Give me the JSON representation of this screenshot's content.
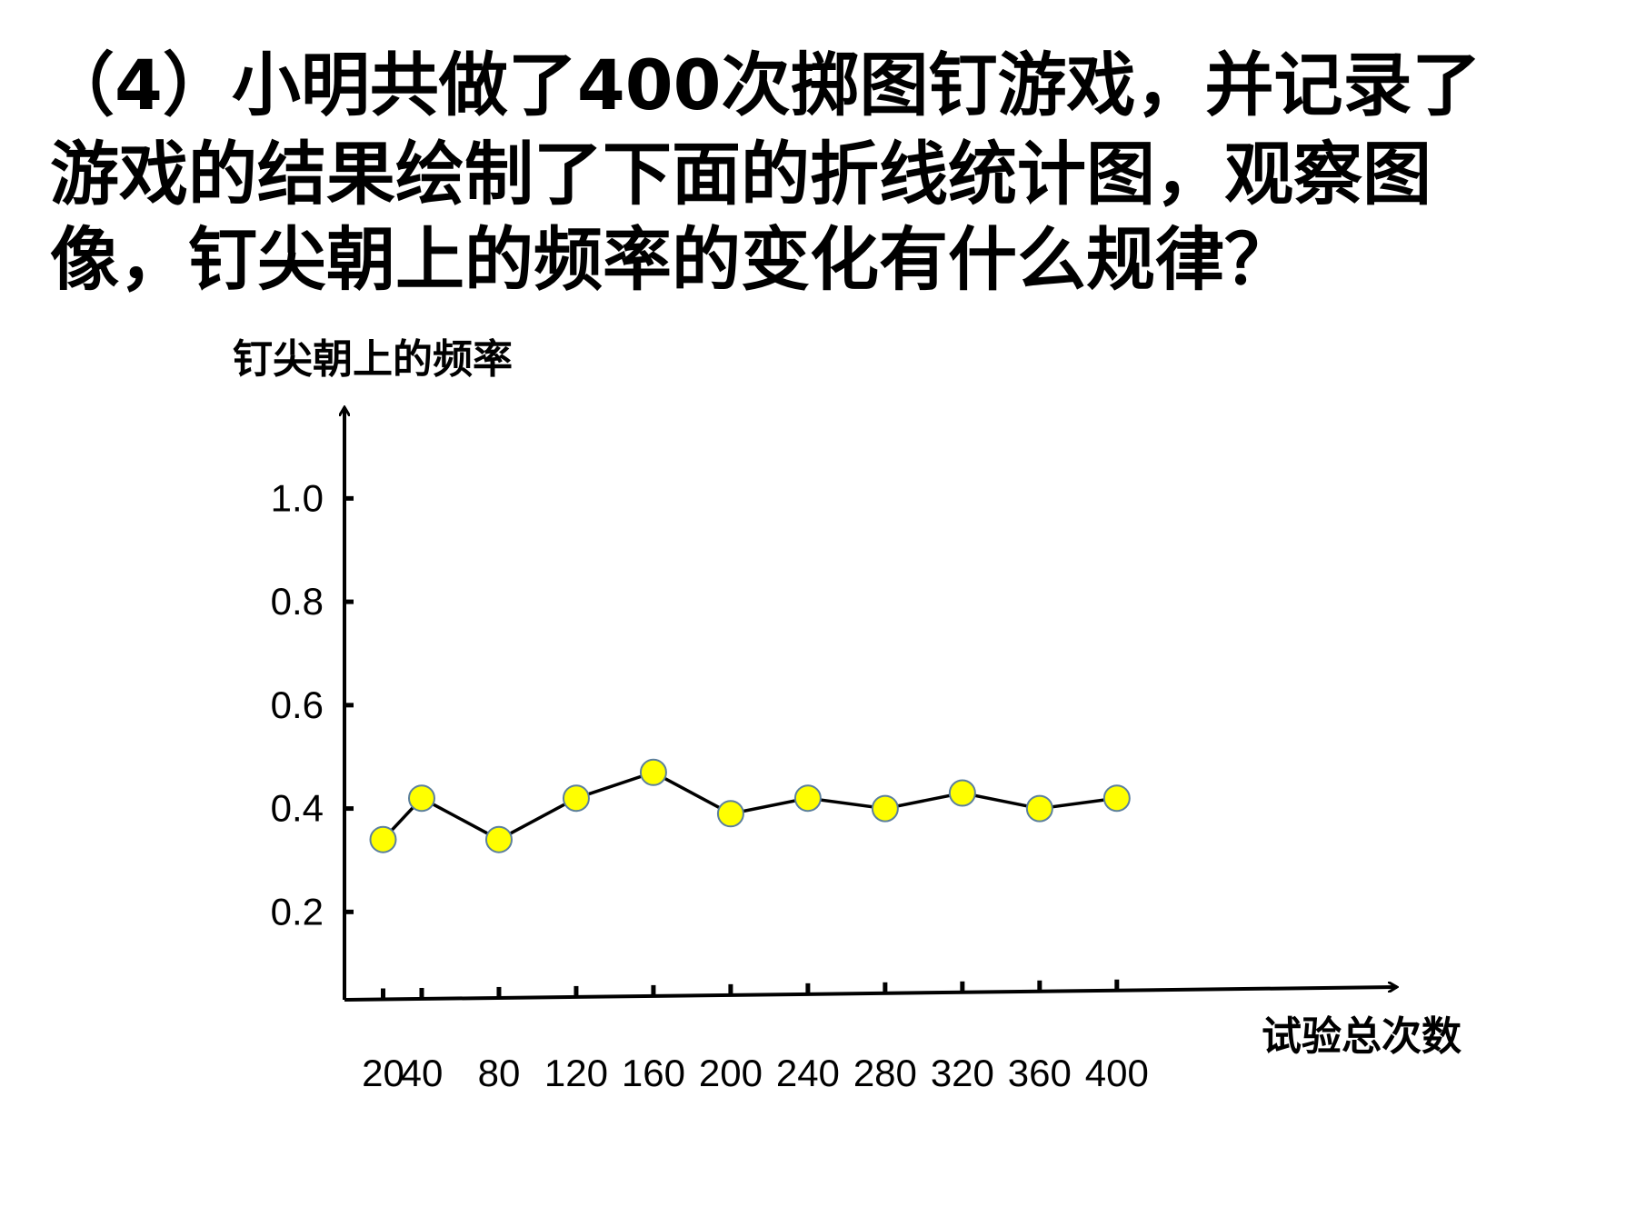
{
  "chart_data": {
    "type": "line",
    "title": [
      "（4）小明共做了400次掷图钉游戏，并记录了",
      "游戏的结果绘制了下面的折线统计图，观察图",
      "像，钉尖朝上的频率的变化有什么规律？"
    ],
    "y_label": "钉尖朝上的频率",
    "x_label": "试验总次数",
    "x": [
      20,
      40,
      80,
      120,
      160,
      200,
      240,
      280,
      320,
      360,
      400
    ],
    "series": [
      {
        "color": "#ffff00",
        "values": [
          0.34,
          0.42,
          0.34,
          0.42,
          0.47,
          0.39,
          0.42,
          0.4,
          0.43,
          0.4,
          0.42
        ]
      }
    ],
    "xlim": [
      0,
      546
    ],
    "xticks": [
      20,
      40,
      80,
      120,
      160,
      200,
      240,
      280,
      320,
      360,
      400
    ],
    "ylim": [
      0.03,
      1.18
    ],
    "yticks": [
      0.2,
      0.4,
      0.6,
      0.8,
      {
        "value": 1,
        "label": "1.0"
      }
    ],
    "grid": false
  }
}
